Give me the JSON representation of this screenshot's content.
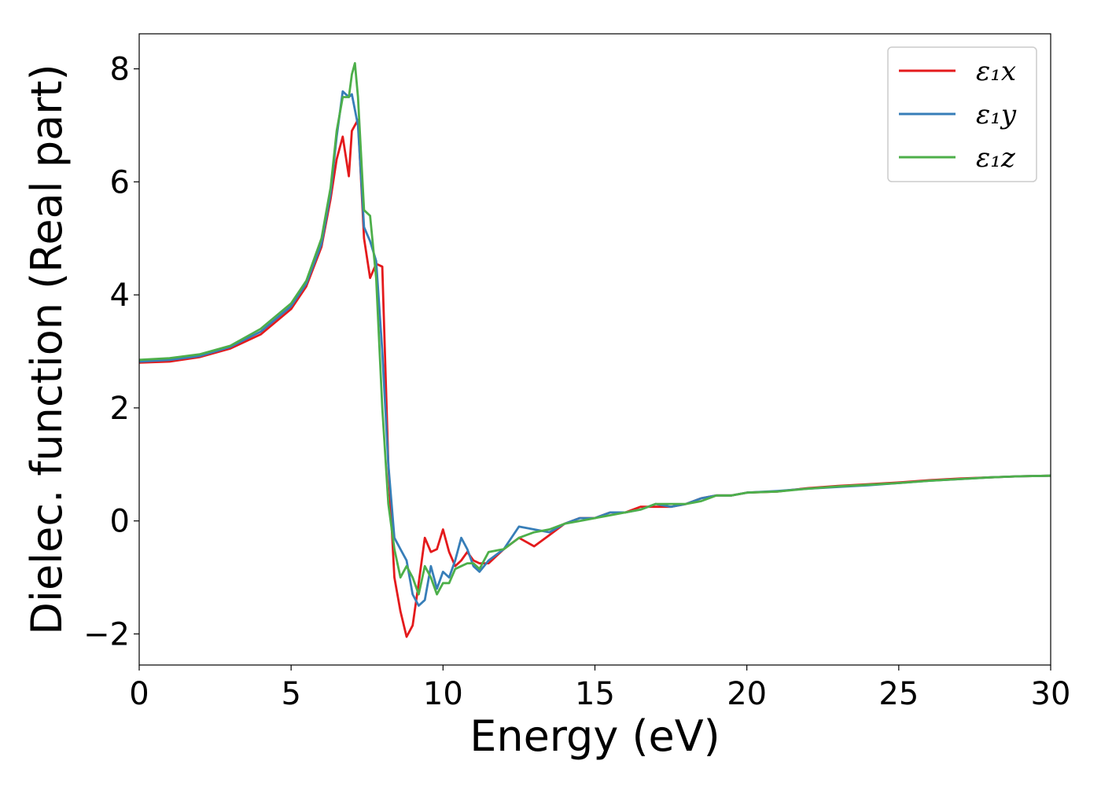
{
  "chart_data": {
    "type": "line",
    "title": "",
    "xlabel": "Energy (eV)",
    "ylabel": "Dielec. function (Real part)",
    "xlim": [
      0,
      30
    ],
    "ylim": [
      -2.55,
      8.62
    ],
    "xticks": [
      0,
      5,
      10,
      15,
      20,
      25,
      30
    ],
    "xtick_labels": [
      "0",
      "5",
      "10",
      "15",
      "20",
      "25",
      "30"
    ],
    "yticks": [
      -2,
      0,
      2,
      4,
      6,
      8
    ],
    "ytick_labels": [
      "−2",
      "0",
      "2",
      "4",
      "6",
      "8"
    ],
    "grid": false,
    "legend_position": "top-right",
    "series": [
      {
        "name": "ε₁x",
        "color": "#e41a1c",
        "x": [
          0,
          1,
          2,
          3,
          4,
          5,
          5.5,
          6,
          6.3,
          6.5,
          6.7,
          6.9,
          7.0,
          7.2,
          7.4,
          7.6,
          7.8,
          8.0,
          8.2,
          8.4,
          8.6,
          8.8,
          9.0,
          9.2,
          9.4,
          9.6,
          9.8,
          10.0,
          10.2,
          10.4,
          10.6,
          10.8,
          11.0,
          11.2,
          11.5,
          12.0,
          12.5,
          13.0,
          13.5,
          14.0,
          14.5,
          15.0,
          15.5,
          16.0,
          16.5,
          17.0,
          17.5,
          18.0,
          18.5,
          19.0,
          19.5,
          20,
          21,
          22,
          23,
          24,
          25,
          26,
          27,
          28,
          29,
          30
        ],
        "values": [
          2.8,
          2.82,
          2.9,
          3.05,
          3.3,
          3.75,
          4.15,
          4.85,
          5.7,
          6.4,
          6.8,
          6.1,
          6.9,
          7.1,
          5.0,
          4.3,
          4.55,
          4.5,
          1.0,
          -1.0,
          -1.6,
          -2.05,
          -1.85,
          -1.1,
          -0.3,
          -0.55,
          -0.5,
          -0.15,
          -0.55,
          -0.8,
          -0.7,
          -0.55,
          -0.7,
          -0.75,
          -0.75,
          -0.5,
          -0.3,
          -0.45,
          -0.25,
          -0.05,
          0.05,
          0.05,
          0.15,
          0.15,
          0.25,
          0.25,
          0.25,
          0.3,
          0.4,
          0.45,
          0.45,
          0.5,
          0.52,
          0.58,
          0.62,
          0.65,
          0.68,
          0.72,
          0.75,
          0.77,
          0.79,
          0.8
        ]
      },
      {
        "name": "ε₁y",
        "color": "#377eb8",
        "x": [
          0,
          1,
          2,
          3,
          4,
          5,
          5.5,
          6,
          6.3,
          6.5,
          6.7,
          6.9,
          7.0,
          7.2,
          7.4,
          7.6,
          7.8,
          8.0,
          8.2,
          8.4,
          8.6,
          8.8,
          9.0,
          9.2,
          9.4,
          9.6,
          9.8,
          10.0,
          10.2,
          10.4,
          10.6,
          10.8,
          11.0,
          11.2,
          11.5,
          12.0,
          12.5,
          13.0,
          13.5,
          14.0,
          14.5,
          15.0,
          15.5,
          16.0,
          16.5,
          17.0,
          17.5,
          18.0,
          18.5,
          19.0,
          19.5,
          20,
          21,
          22,
          23,
          24,
          25,
          26,
          27,
          28,
          29,
          30
        ],
        "values": [
          2.82,
          2.85,
          2.92,
          3.08,
          3.35,
          3.8,
          4.2,
          4.9,
          5.8,
          6.8,
          7.6,
          7.5,
          7.55,
          7.0,
          5.2,
          4.95,
          4.6,
          3.0,
          1.0,
          -0.3,
          -0.5,
          -0.7,
          -1.3,
          -1.5,
          -1.4,
          -0.8,
          -1.2,
          -0.9,
          -1.0,
          -0.7,
          -0.3,
          -0.5,
          -0.8,
          -0.9,
          -0.7,
          -0.5,
          -0.1,
          -0.15,
          -0.2,
          -0.05,
          0.05,
          0.05,
          0.15,
          0.15,
          0.2,
          0.3,
          0.25,
          0.3,
          0.4,
          0.45,
          0.45,
          0.5,
          0.53,
          0.57,
          0.6,
          0.63,
          0.67,
          0.71,
          0.74,
          0.77,
          0.79,
          0.8
        ]
      },
      {
        "name": "ε₁z",
        "color": "#4daf4a",
        "x": [
          0,
          1,
          2,
          3,
          4,
          5,
          5.5,
          6,
          6.3,
          6.5,
          6.7,
          6.9,
          7.0,
          7.1,
          7.2,
          7.4,
          7.6,
          7.8,
          8.0,
          8.2,
          8.4,
          8.6,
          8.8,
          9.0,
          9.2,
          9.4,
          9.6,
          9.8,
          10.0,
          10.2,
          10.4,
          10.6,
          10.8,
          11.0,
          11.2,
          11.5,
          12.0,
          12.5,
          13.0,
          13.5,
          14.0,
          14.5,
          15.0,
          15.5,
          16.0,
          16.5,
          17.0,
          17.5,
          18.0,
          18.5,
          19.0,
          19.5,
          20,
          21,
          22,
          23,
          24,
          25,
          26,
          27,
          28,
          29,
          30
        ],
        "values": [
          2.85,
          2.88,
          2.95,
          3.1,
          3.4,
          3.85,
          4.25,
          5.0,
          5.9,
          6.9,
          7.5,
          7.5,
          7.9,
          8.1,
          7.5,
          5.5,
          5.4,
          4.3,
          2.0,
          0.3,
          -0.5,
          -1.0,
          -0.8,
          -1.0,
          -1.3,
          -0.8,
          -1.0,
          -1.3,
          -1.1,
          -1.1,
          -0.85,
          -0.8,
          -0.75,
          -0.75,
          -0.85,
          -0.55,
          -0.5,
          -0.3,
          -0.2,
          -0.15,
          -0.05,
          0.0,
          0.05,
          0.1,
          0.15,
          0.2,
          0.3,
          0.3,
          0.3,
          0.35,
          0.45,
          0.45,
          0.5,
          0.52,
          0.57,
          0.61,
          0.64,
          0.67,
          0.71,
          0.74,
          0.77,
          0.79,
          0.8
        ]
      }
    ]
  }
}
